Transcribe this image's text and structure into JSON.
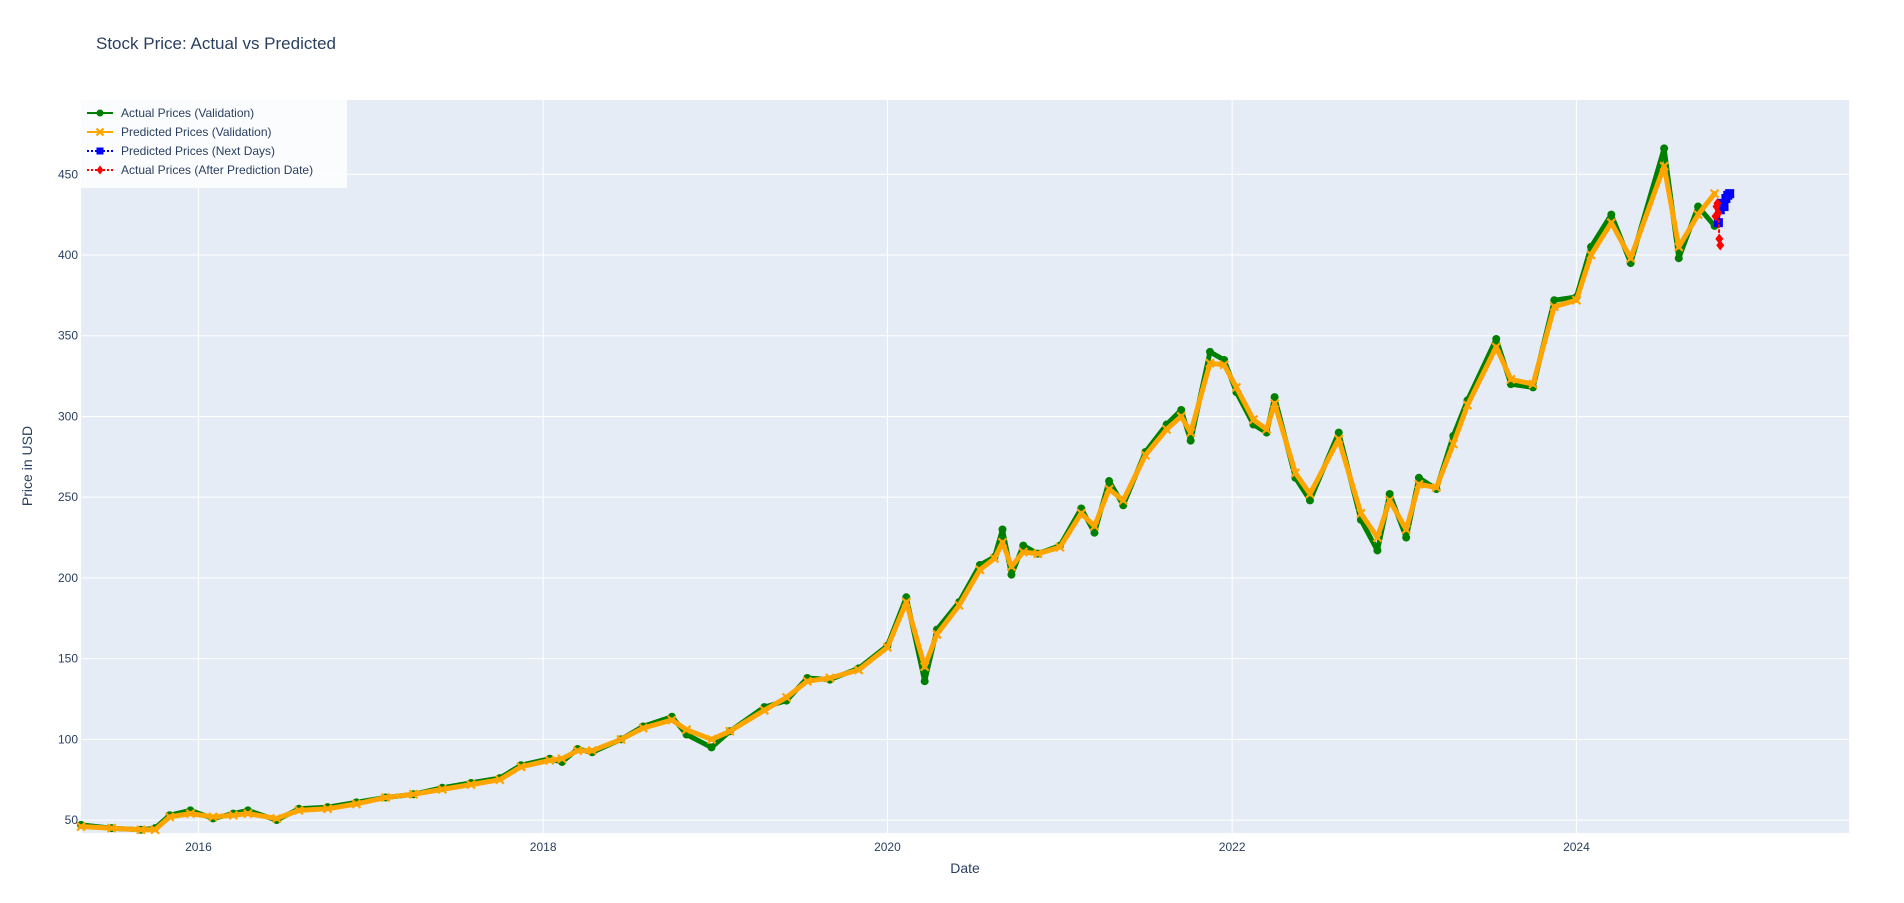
{
  "chart_data": {
    "type": "line",
    "title": "Stock Price: Actual vs Predicted",
    "xlabel": "Date",
    "ylabel": "Price in USD",
    "xlim": [
      "2015-04-27",
      "2025-08-01"
    ],
    "ylim": [
      42,
      496
    ],
    "x_ticks": [
      "2016",
      "2018",
      "2020",
      "2022",
      "2024"
    ],
    "y_ticks": [
      50,
      100,
      150,
      200,
      250,
      300,
      350,
      400,
      450
    ],
    "grid": true,
    "legend_position": "top-left",
    "colors": {
      "plot_bg": "#e5ecf6",
      "grid": "#ffffff",
      "actual": "#008000",
      "predicted": "#ffa500",
      "next_days": "#0000ff",
      "after": "#ff0000"
    },
    "series": [
      {
        "name": "Actual Prices (Validation)",
        "marker": "circle",
        "dash": "solid",
        "color": "#008000",
        "points": [
          [
            "2015-04-27",
            47
          ],
          [
            "2015-07-01",
            45
          ],
          [
            "2015-09-01",
            44
          ],
          [
            "2015-10-01",
            45
          ],
          [
            "2015-11-01",
            53
          ],
          [
            "2015-12-15",
            56
          ],
          [
            "2016-02-01",
            51
          ],
          [
            "2016-03-15",
            54
          ],
          [
            "2016-04-15",
            56
          ],
          [
            "2016-06-15",
            50
          ],
          [
            "2016-08-01",
            57
          ],
          [
            "2016-10-01",
            58
          ],
          [
            "2016-12-01",
            61
          ],
          [
            "2017-02-01",
            64
          ],
          [
            "2017-04-01",
            66
          ],
          [
            "2017-06-01",
            70
          ],
          [
            "2017-08-01",
            73
          ],
          [
            "2017-10-01",
            76
          ],
          [
            "2017-11-15",
            84
          ],
          [
            "2018-01-15",
            88
          ],
          [
            "2018-02-10",
            86
          ],
          [
            "2018-03-15",
            94
          ],
          [
            "2018-04-15",
            92
          ],
          [
            "2018-06-15",
            100
          ],
          [
            "2018-08-01",
            108
          ],
          [
            "2018-10-01",
            114
          ],
          [
            "2018-11-01",
            103
          ],
          [
            "2018-12-24",
            95
          ],
          [
            "2019-02-01",
            105
          ],
          [
            "2019-04-15",
            120
          ],
          [
            "2019-06-01",
            124
          ],
          [
            "2019-07-15",
            138
          ],
          [
            "2019-09-01",
            137
          ],
          [
            "2019-11-01",
            144
          ],
          [
            "2020-01-01",
            158
          ],
          [
            "2020-02-10",
            188
          ],
          [
            "2020-03-20",
            136
          ],
          [
            "2020-04-15",
            168
          ],
          [
            "2020-06-01",
            185
          ],
          [
            "2020-07-15",
            208
          ],
          [
            "2020-08-15",
            213
          ],
          [
            "2020-09-01",
            230
          ],
          [
            "2020-09-20",
            202
          ],
          [
            "2020-10-15",
            220
          ],
          [
            "2020-11-15",
            215
          ],
          [
            "2021-01-01",
            220
          ],
          [
            "2021-02-15",
            243
          ],
          [
            "2021-03-15",
            228
          ],
          [
            "2021-04-15",
            260
          ],
          [
            "2021-05-15",
            245
          ],
          [
            "2021-07-01",
            278
          ],
          [
            "2021-08-15",
            295
          ],
          [
            "2021-09-15",
            304
          ],
          [
            "2021-10-05",
            285
          ],
          [
            "2021-11-15",
            340
          ],
          [
            "2021-12-15",
            335
          ],
          [
            "2022-01-10",
            315
          ],
          [
            "2022-02-15",
            295
          ],
          [
            "2022-03-15",
            290
          ],
          [
            "2022-04-01",
            312
          ],
          [
            "2022-05-15",
            262
          ],
          [
            "2022-06-15",
            248
          ],
          [
            "2022-08-15",
            290
          ],
          [
            "2022-10-01",
            236
          ],
          [
            "2022-11-05",
            217
          ],
          [
            "2022-12-01",
            252
          ],
          [
            "2023-01-05",
            225
          ],
          [
            "2023-02-01",
            262
          ],
          [
            "2023-03-10",
            255
          ],
          [
            "2023-04-15",
            288
          ],
          [
            "2023-05-15",
            310
          ],
          [
            "2023-07-15",
            348
          ],
          [
            "2023-08-15",
            320
          ],
          [
            "2023-10-01",
            318
          ],
          [
            "2023-11-15",
            372
          ],
          [
            "2024-01-01",
            374
          ],
          [
            "2024-02-01",
            405
          ],
          [
            "2024-03-15",
            425
          ],
          [
            "2024-04-25",
            395
          ],
          [
            "2024-07-05",
            466
          ],
          [
            "2024-08-05",
            398
          ],
          [
            "2024-09-15",
            430
          ],
          [
            "2024-10-20",
            418
          ]
        ]
      },
      {
        "name": "Predicted Prices (Validation)",
        "marker": "x",
        "dash": "solid",
        "color": "#ffa500",
        "points": [
          [
            "2015-04-27",
            46
          ],
          [
            "2015-07-01",
            45
          ],
          [
            "2015-09-01",
            44
          ],
          [
            "2015-10-01",
            44
          ],
          [
            "2015-11-01",
            52
          ],
          [
            "2015-12-15",
            54
          ],
          [
            "2016-02-01",
            52
          ],
          [
            "2016-03-15",
            53
          ],
          [
            "2016-04-15",
            54
          ],
          [
            "2016-06-15",
            51
          ],
          [
            "2016-08-01",
            56
          ],
          [
            "2016-10-01",
            57
          ],
          [
            "2016-12-01",
            60
          ],
          [
            "2017-02-01",
            64
          ],
          [
            "2017-04-01",
            66
          ],
          [
            "2017-06-01",
            69
          ],
          [
            "2017-08-01",
            72
          ],
          [
            "2017-10-01",
            75
          ],
          [
            "2017-11-15",
            83
          ],
          [
            "2018-01-15",
            87
          ],
          [
            "2018-02-10",
            88
          ],
          [
            "2018-03-15",
            93
          ],
          [
            "2018-04-15",
            93
          ],
          [
            "2018-06-15",
            100
          ],
          [
            "2018-08-01",
            107
          ],
          [
            "2018-10-01",
            112
          ],
          [
            "2018-11-01",
            106
          ],
          [
            "2018-12-24",
            100
          ],
          [
            "2019-02-01",
            105
          ],
          [
            "2019-04-15",
            118
          ],
          [
            "2019-06-01",
            126
          ],
          [
            "2019-07-15",
            136
          ],
          [
            "2019-09-01",
            138
          ],
          [
            "2019-11-01",
            143
          ],
          [
            "2020-01-01",
            157
          ],
          [
            "2020-02-10",
            185
          ],
          [
            "2020-03-20",
            145
          ],
          [
            "2020-04-15",
            165
          ],
          [
            "2020-06-01",
            183
          ],
          [
            "2020-07-15",
            205
          ],
          [
            "2020-08-15",
            212
          ],
          [
            "2020-09-01",
            222
          ],
          [
            "2020-09-20",
            207
          ],
          [
            "2020-10-15",
            216
          ],
          [
            "2020-11-15",
            215
          ],
          [
            "2021-01-01",
            219
          ],
          [
            "2021-02-15",
            240
          ],
          [
            "2021-03-15",
            232
          ],
          [
            "2021-04-15",
            255
          ],
          [
            "2021-05-15",
            248
          ],
          [
            "2021-07-01",
            276
          ],
          [
            "2021-08-15",
            292
          ],
          [
            "2021-09-15",
            300
          ],
          [
            "2021-10-05",
            290
          ],
          [
            "2021-11-15",
            333
          ],
          [
            "2021-12-15",
            332
          ],
          [
            "2022-01-10",
            318
          ],
          [
            "2022-02-15",
            298
          ],
          [
            "2022-03-15",
            292
          ],
          [
            "2022-04-01",
            308
          ],
          [
            "2022-05-15",
            265
          ],
          [
            "2022-06-15",
            252
          ],
          [
            "2022-08-15",
            286
          ],
          [
            "2022-10-01",
            240
          ],
          [
            "2022-11-05",
            225
          ],
          [
            "2022-12-01",
            248
          ],
          [
            "2023-01-05",
            230
          ],
          [
            "2023-02-01",
            258
          ],
          [
            "2023-03-10",
            256
          ],
          [
            "2023-04-15",
            283
          ],
          [
            "2023-05-15",
            307
          ],
          [
            "2023-07-15",
            343
          ],
          [
            "2023-08-15",
            323
          ],
          [
            "2023-10-01",
            320
          ],
          [
            "2023-11-15",
            368
          ],
          [
            "2024-01-01",
            372
          ],
          [
            "2024-02-01",
            400
          ],
          [
            "2024-03-15",
            420
          ],
          [
            "2024-04-25",
            398
          ],
          [
            "2024-07-05",
            455
          ],
          [
            "2024-08-05",
            405
          ],
          [
            "2024-09-15",
            425
          ],
          [
            "2024-10-20",
            438
          ]
        ]
      },
      {
        "name": "Predicted Prices (Next Days)",
        "marker": "square",
        "dash": "dot",
        "color": "#0000ff",
        "points": [
          [
            "2024-10-28",
            420
          ],
          [
            "2024-11-01",
            428
          ],
          [
            "2024-11-05",
            432
          ],
          [
            "2024-11-09",
            430
          ],
          [
            "2024-11-13",
            435
          ],
          [
            "2024-11-17",
            437
          ],
          [
            "2024-11-21",
            438
          ]
        ]
      },
      {
        "name": "Actual Prices (After Prediction Date)",
        "marker": "diamond",
        "dash": "dot",
        "color": "#ff0000",
        "points": [
          [
            "2024-10-22",
            424
          ],
          [
            "2024-10-24",
            430
          ],
          [
            "2024-10-26",
            432
          ],
          [
            "2024-10-28",
            426
          ],
          [
            "2024-10-30",
            410
          ],
          [
            "2024-11-01",
            406
          ]
        ]
      }
    ]
  }
}
